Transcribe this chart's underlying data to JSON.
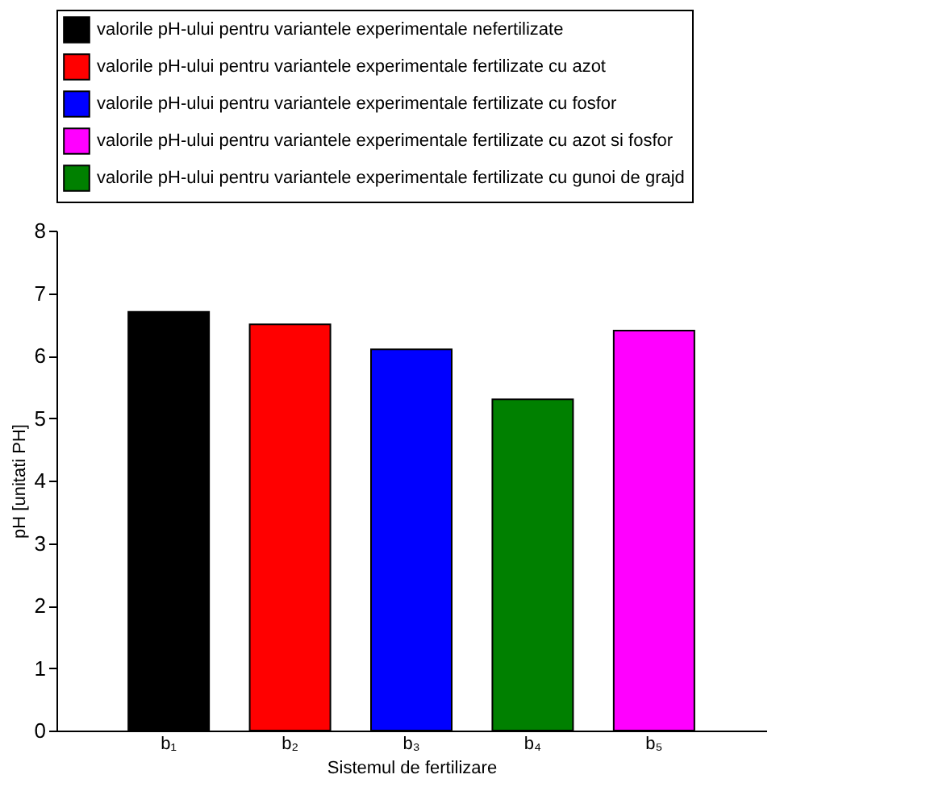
{
  "chart_data": {
    "type": "bar",
    "xlabel": "Sistemul de fertilizare",
    "ylabel": "pH [unitati PH]",
    "categories": [
      "b₁",
      "b₂",
      "b₃",
      "b₄",
      "b₅"
    ],
    "series": [
      {
        "name": "valorile pH-ului pentru variantele experimentale nefertilizate",
        "color": "#000000",
        "values": [
          6.7,
          null,
          null,
          null,
          null
        ]
      },
      {
        "name": "valorile pH-ului pentru variantele experimentale fertilizate cu azot",
        "color": "#ff0000",
        "values": [
          null,
          6.5,
          null,
          null,
          null
        ]
      },
      {
        "name": "valorile pH-ului pentru variantele experimentale fertilizate cu fosfor",
        "color": "#0000ff",
        "values": [
          null,
          null,
          6.1,
          null,
          null
        ]
      },
      {
        "name": "valorile pH-ului pentru variantele experimentale fertilizate cu azot si fosfor",
        "color": "#ff00ff",
        "values": [
          null,
          null,
          null,
          null,
          6.4
        ]
      },
      {
        "name": "valorile pH-ului pentru variantele experimentale fertilizate cu gunoi de grajd",
        "color": "#008000",
        "values": [
          null,
          null,
          null,
          5.3,
          null
        ]
      }
    ],
    "ylim": [
      0,
      8
    ],
    "yticks": [
      0,
      1,
      2,
      3,
      4,
      5,
      6,
      7,
      8
    ],
    "grid": false,
    "legend": "top"
  }
}
